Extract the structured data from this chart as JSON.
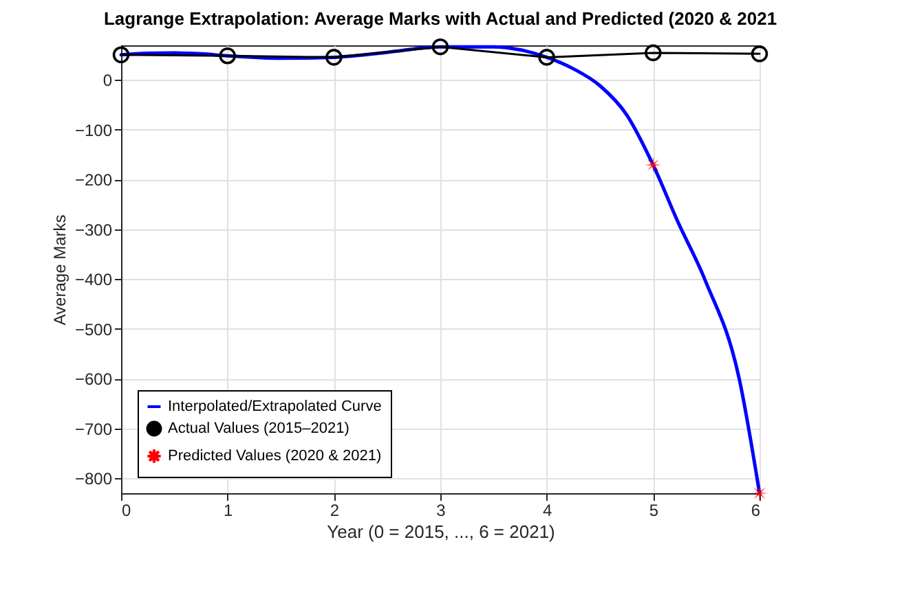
{
  "chart_data": {
    "type": "line",
    "title": "Lagrange Extrapolation: Average Marks with Actual and Predicted (2020 & 2021",
    "xlabel": "Year (0 = 2015, ..., 6 = 2021)",
    "ylabel": "Average Marks",
    "xlim": [
      0,
      6
    ],
    "xticks": [
      0,
      1,
      2,
      3,
      4,
      5,
      6
    ],
    "ylim": [
      -830,
      69
    ],
    "yticks": [
      -800,
      -700,
      -600,
      -500,
      -400,
      -300,
      -200,
      -100,
      0
    ],
    "grid": true,
    "legend": "bottom left",
    "series": [
      {
        "name": "Interpolated/Extrapolated Curve",
        "color": "#0000ff",
        "marker": "none",
        "line_style": "solid",
        "x": [
          0,
          0.25,
          0.5,
          0.75,
          1,
          1.5,
          2,
          2.5,
          3,
          3.5,
          3.75,
          4,
          4.25,
          4.5,
          4.75,
          5,
          5.23,
          5.49,
          5.81,
          6
        ],
        "values": [
          50,
          53,
          54,
          52,
          48,
          43,
          45,
          55,
          66,
          66,
          60,
          45,
          22,
          -12,
          -70,
          -171,
          -284,
          -403,
          -601,
          -830
        ]
      },
      {
        "name": "Actual Values (2015–2021)",
        "color": "#000000",
        "marker": "circle",
        "line_style": "solid",
        "x": [
          0,
          1,
          2,
          3,
          4,
          5,
          6
        ],
        "values": [
          50,
          48,
          45,
          66,
          45,
          54,
          52
        ]
      },
      {
        "name": "Predicted Values (2020 & 2021)",
        "type": "scatter",
        "color": "#ff0000",
        "marker": "star",
        "x": [
          5,
          6
        ],
        "values": [
          -171,
          -830
        ]
      }
    ]
  }
}
